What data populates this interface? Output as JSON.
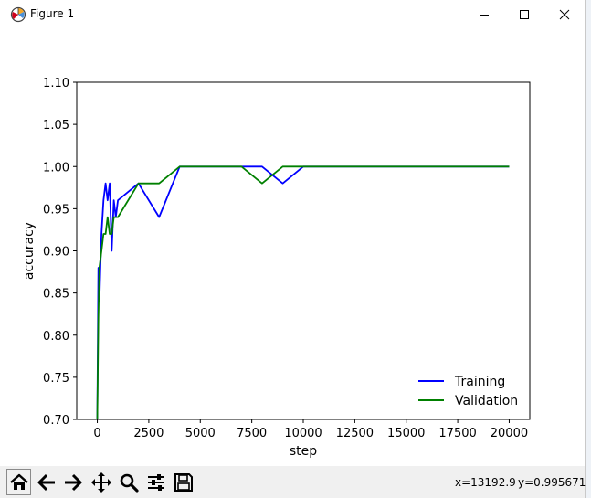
{
  "window": {
    "title": "Figure 1"
  },
  "status": {
    "x": "x=13192.9",
    "y": "y=0.995671"
  },
  "toolbar": {
    "buttons": [
      "home-icon",
      "back-arrow-icon",
      "forward-arrow-icon",
      "pan-icon",
      "zoom-icon",
      "configure-subplots-icon",
      "save-icon"
    ]
  },
  "colors": {
    "training": "#0000ff",
    "validation": "#008000"
  },
  "chart_data": {
    "type": "line",
    "xlabel": "step",
    "ylabel": "accuracy",
    "xlim": [
      -1000,
      21000
    ],
    "ylim": [
      0.7,
      1.1
    ],
    "xticks": [
      0,
      2500,
      5000,
      7500,
      10000,
      12500,
      15000,
      17500,
      20000
    ],
    "yticks": [
      "0.70",
      "0.75",
      "0.80",
      "0.85",
      "0.90",
      "0.95",
      "1.00",
      "1.05",
      "1.10"
    ],
    "grid": false,
    "legend_position": "lower-right",
    "series": [
      {
        "name": "Training",
        "color": "#0000ff",
        "x": [
          0,
          50,
          100,
          150,
          200,
          300,
          400,
          500,
          600,
          700,
          800,
          900,
          1000,
          2000,
          3000,
          4000,
          5000,
          6000,
          7000,
          8000,
          9000,
          10000,
          11000,
          12000,
          13000,
          14000,
          15000,
          16000,
          17000,
          18000,
          19000,
          20000
        ],
        "y": [
          0.7,
          0.88,
          0.84,
          0.88,
          0.92,
          0.96,
          0.98,
          0.96,
          0.98,
          0.9,
          0.96,
          0.94,
          0.96,
          0.98,
          0.94,
          1.0,
          1.0,
          1.0,
          1.0,
          1.0,
          0.98,
          1.0,
          1.0,
          1.0,
          1.0,
          1.0,
          1.0,
          1.0,
          1.0,
          1.0,
          1.0,
          1.0
        ]
      },
      {
        "name": "Validation",
        "color": "#008000",
        "x": [
          0,
          50,
          100,
          200,
          300,
          400,
          500,
          600,
          700,
          800,
          900,
          1000,
          2000,
          3000,
          4000,
          5000,
          6000,
          7000,
          8000,
          9000,
          10000,
          11000,
          12000,
          13000,
          14000,
          15000,
          16000,
          17000,
          18000,
          19000,
          20000
        ],
        "y": [
          0.7,
          0.82,
          0.88,
          0.9,
          0.92,
          0.92,
          0.94,
          0.92,
          0.92,
          0.94,
          0.94,
          0.94,
          0.98,
          0.98,
          1.0,
          1.0,
          1.0,
          1.0,
          0.98,
          1.0,
          1.0,
          1.0,
          1.0,
          1.0,
          1.0,
          1.0,
          1.0,
          1.0,
          1.0,
          1.0,
          1.0
        ]
      }
    ]
  }
}
